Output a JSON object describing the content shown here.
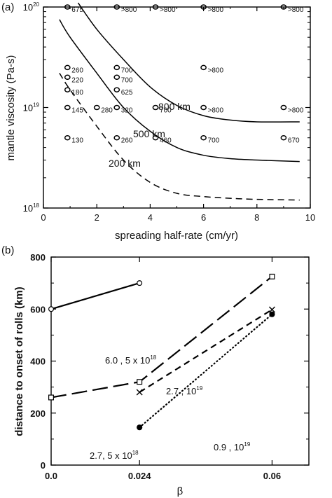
{
  "chart_data": [
    {
      "panel": "(a)",
      "type": "scatter",
      "xlabel": "spreading half-rate (cm/yr)",
      "ylabel": "mantle viscosity (Pa-s)",
      "xlim": [
        0,
        10
      ],
      "ylim": [
        1e+18,
        1e+20
      ],
      "yscale": "log",
      "grid": false,
      "xticks": [
        "0",
        "2",
        "4",
        "6",
        "8",
        "10"
      ],
      "yticks": [
        {
          "base": "10",
          "exp": "18",
          "value": 1e+18
        },
        {
          "base": "10",
          "exp": "19",
          "value": 1e+19
        },
        {
          "base": "10",
          "exp": "20",
          "value": 1e+20
        }
      ],
      "points": [
        {
          "x": 0.9,
          "y": 1e+20,
          "label": "675"
        },
        {
          "x": 2.75,
          "y": 1e+20,
          "label": ">800"
        },
        {
          "x": 4.2,
          "y": 1e+20,
          "label": ">800"
        },
        {
          "x": 6.0,
          "y": 1e+20,
          "label": ">800"
        },
        {
          "x": 9.0,
          "y": 1e+20,
          "label": ">800"
        },
        {
          "x": 0.9,
          "y": 2.5e+19,
          "label": "260"
        },
        {
          "x": 0.9,
          "y": 2e+19,
          "label": "220"
        },
        {
          "x": 0.9,
          "y": 1.5e+19,
          "label": "180"
        },
        {
          "x": 0.9,
          "y": 1e+19,
          "label": "145"
        },
        {
          "x": 0.9,
          "y": 5e+18,
          "label": "130"
        },
        {
          "x": 2.0,
          "y": 1e+19,
          "label": "280"
        },
        {
          "x": 2.75,
          "y": 2.5e+19,
          "label": "700"
        },
        {
          "x": 2.75,
          "y": 2e+19,
          "label": "700"
        },
        {
          "x": 2.75,
          "y": 1.5e+19,
          "label": "625"
        },
        {
          "x": 2.75,
          "y": 1e+19,
          "label": "320"
        },
        {
          "x": 2.75,
          "y": 5e+18,
          "label": "260"
        },
        {
          "x": 4.2,
          "y": 1e+19,
          "label": "700"
        },
        {
          "x": 4.2,
          "y": 5e+18,
          "label": "460"
        },
        {
          "x": 6.0,
          "y": 2.5e+19,
          "label": ">800"
        },
        {
          "x": 6.0,
          "y": 1e+19,
          "label": ">800"
        },
        {
          "x": 6.0,
          "y": 5e+18,
          "label": "700"
        },
        {
          "x": 9.0,
          "y": 1e+19,
          "label": ">800"
        },
        {
          "x": 9.0,
          "y": 5e+18,
          "label": "670"
        }
      ],
      "curves": [
        {
          "name": "800 km",
          "dash": "solid",
          "points": [
            [
              1.3,
              1.1e+20
            ],
            [
              2,
              6e+19
            ],
            [
              3,
              3e+19
            ],
            [
              4,
              1.6e+19
            ],
            [
              5,
              1.05e+19
            ],
            [
              6,
              8.3e+18
            ],
            [
              7,
              7.5e+18
            ],
            [
              8,
              7.2e+18
            ],
            [
              9.6,
              7.2e+18
            ]
          ]
        },
        {
          "name": "500 km",
          "dash": "solid",
          "points": [
            [
              0.6,
              7.5e+19
            ],
            [
              1,
              5e+19
            ],
            [
              2,
              2.2e+19
            ],
            [
              3,
              1e+19
            ],
            [
              4,
              5.8e+18
            ],
            [
              5,
              4e+18
            ],
            [
              6,
              3.35e+18
            ],
            [
              7,
              3.1e+18
            ],
            [
              8,
              3e+18
            ],
            [
              9.6,
              2.9e+18
            ]
          ]
        },
        {
          "name": "200 km",
          "dash": "dashed",
          "points": [
            [
              0.6,
              2.2e+19
            ],
            [
              1,
              1.5e+19
            ],
            [
              2,
              6.5e+18
            ],
            [
              3,
              3e+18
            ],
            [
              4,
              1.8e+18
            ],
            [
              5,
              1.4e+18
            ],
            [
              6,
              1.3e+18
            ],
            [
              7,
              1.25e+18
            ],
            [
              8,
              1.22e+18
            ],
            [
              9.6,
              1.2e+18
            ]
          ]
        }
      ]
    },
    {
      "panel": "(b)",
      "type": "line",
      "xlabel": "β",
      "ylabel": "distance to onset of rolls (km)",
      "xlim": [
        0,
        0.07
      ],
      "ylim": [
        0,
        800
      ],
      "grid": false,
      "xticks": [
        {
          "label": "0.0",
          "value": 0.0
        },
        {
          "label": "0.024",
          "value": 0.024
        },
        {
          "label": "0.06",
          "value": 0.06
        }
      ],
      "yticks": [
        "0",
        "200",
        "400",
        "600",
        "800"
      ],
      "series": [
        {
          "label": {
            "main": "6.0 , 5 x 10",
            "exp": "18"
          },
          "dash": "solid",
          "marker": "open-circle",
          "x": [
            0.0,
            0.024
          ],
          "y": [
            600,
            700
          ]
        },
        {
          "label": {
            "main": "2.7 , 10",
            "exp": "19"
          },
          "dash": "long-dash",
          "marker": "open-square",
          "x": [
            0.0,
            0.024,
            0.06
          ],
          "y": [
            260,
            320,
            725
          ]
        },
        {
          "label": {
            "main": "2.7, 5 x 10",
            "exp": "18"
          },
          "dash": "dashed",
          "marker": "cross",
          "x": [
            0.024,
            0.06
          ],
          "y": [
            280,
            598
          ]
        },
        {
          "label": {
            "main": "0.9 , 10",
            "exp": "19"
          },
          "dash": "dotted",
          "marker": "filled-circle",
          "x": [
            0.024,
            0.06
          ],
          "y": [
            145,
            580
          ]
        }
      ]
    }
  ]
}
